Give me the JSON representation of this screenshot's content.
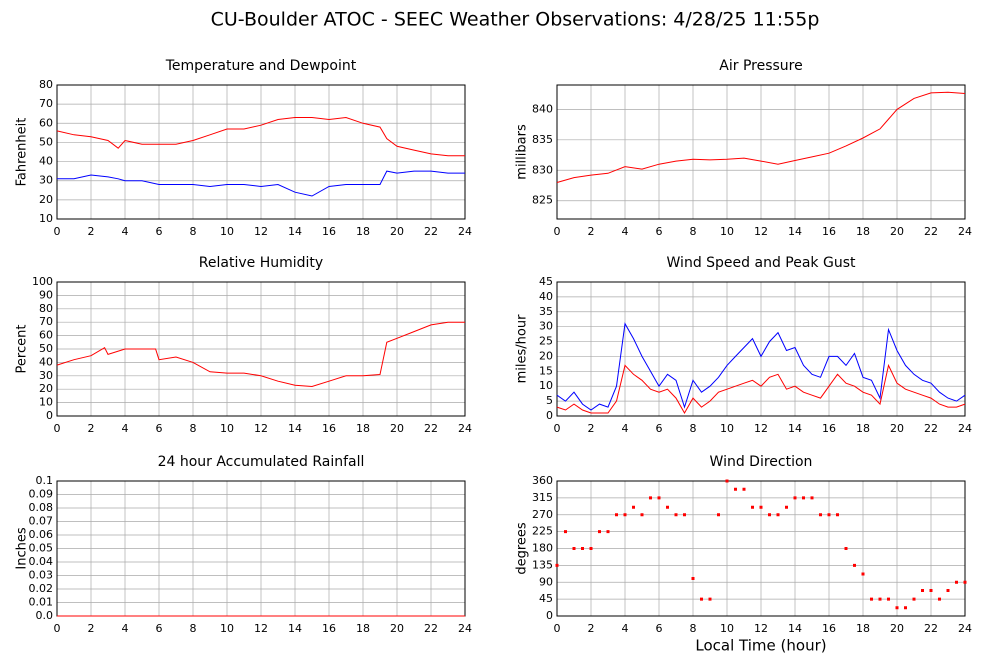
{
  "title": "CU-Boulder ATOC - SEEC Weather Observations: 4/28/25 11:55p",
  "chart_data": [
    {
      "type": "line",
      "title": "Temperature and Dewpoint",
      "ylabel": "Fahrenheit",
      "x": [
        0,
        1,
        2,
        3,
        3.6,
        4,
        5,
        6,
        7,
        8,
        9,
        10,
        11,
        12,
        13,
        14,
        15,
        16,
        17,
        18,
        19,
        19.4,
        20,
        21,
        22,
        23,
        24
      ],
      "series": [
        {
          "color": "#ff0000",
          "values": [
            56,
            54,
            53,
            51,
            47,
            51,
            49,
            49,
            49,
            51,
            54,
            57,
            57,
            59,
            62,
            63,
            63,
            62,
            63,
            60,
            58,
            52,
            48,
            46,
            44,
            43,
            43
          ]
        },
        {
          "color": "#0000ff",
          "values": [
            31,
            31,
            33,
            32,
            31,
            30,
            30,
            28,
            28,
            28,
            27,
            28,
            28,
            27,
            28,
            24,
            22,
            27,
            28,
            28,
            28,
            35,
            34,
            35,
            35,
            34,
            34
          ]
        }
      ],
      "xlim": [
        0,
        24
      ],
      "xticks": [
        0,
        2,
        4,
        6,
        8,
        10,
        12,
        14,
        16,
        18,
        20,
        22,
        24
      ],
      "ylim": [
        10,
        80
      ],
      "yticks": [
        10,
        20,
        30,
        40,
        50,
        60,
        70,
        80
      ],
      "grid": true
    },
    {
      "type": "line",
      "title": "Air Pressure",
      "ylabel": "millibars",
      "x": [
        0,
        1,
        2,
        3,
        4,
        5,
        6,
        7,
        8,
        9,
        10,
        11,
        12,
        13,
        14,
        15,
        16,
        17,
        18,
        19,
        20,
        21,
        22,
        23,
        24
      ],
      "series": [
        {
          "color": "#ff0000",
          "values": [
            828,
            828.8,
            829.2,
            829.5,
            830.6,
            830.2,
            831,
            831.5,
            831.8,
            831.7,
            831.8,
            832,
            831.5,
            831,
            831.6,
            832.2,
            832.8,
            834,
            835.3,
            836.8,
            840,
            841.8,
            842.7,
            842.8,
            842.6
          ]
        }
      ],
      "xlim": [
        0,
        24
      ],
      "xticks": [
        0,
        2,
        4,
        6,
        8,
        10,
        12,
        14,
        16,
        18,
        20,
        22,
        24
      ],
      "ylim": [
        822,
        844
      ],
      "yticks": [
        825,
        830,
        835,
        840
      ],
      "grid": true
    },
    {
      "type": "line",
      "title": "Relative Humidity",
      "ylabel": "Percent",
      "x": [
        0,
        1,
        2,
        2.8,
        3,
        4,
        5,
        5.8,
        6,
        7,
        8,
        9,
        10,
        11,
        12,
        13,
        14,
        15,
        16,
        17,
        18,
        19,
        19.4,
        20,
        21,
        22,
        23,
        24
      ],
      "series": [
        {
          "color": "#ff0000",
          "values": [
            38,
            42,
            45,
            51,
            46,
            50,
            50,
            50,
            42,
            44,
            40,
            33,
            32,
            32,
            30,
            26,
            23,
            22,
            26,
            30,
            30,
            31,
            55,
            58,
            63,
            68,
            70,
            70
          ]
        }
      ],
      "xlim": [
        0,
        24
      ],
      "xticks": [
        0,
        2,
        4,
        6,
        8,
        10,
        12,
        14,
        16,
        18,
        20,
        22,
        24
      ],
      "ylim": [
        0,
        100
      ],
      "yticks": [
        0,
        10,
        20,
        30,
        40,
        50,
        60,
        70,
        80,
        90,
        100
      ],
      "grid": true
    },
    {
      "type": "line",
      "title": "Wind Speed and Peak Gust",
      "ylabel": "miles/hour",
      "x": [
        0,
        0.5,
        1,
        1.5,
        2,
        2.5,
        3,
        3.5,
        4,
        4.5,
        5,
        5.5,
        6,
        6.5,
        7,
        7.5,
        8,
        8.5,
        9,
        9.5,
        10,
        10.5,
        11,
        11.5,
        12,
        12.5,
        13,
        13.5,
        14,
        14.5,
        15,
        15.5,
        16,
        16.5,
        17,
        17.5,
        18,
        18.5,
        19,
        19.5,
        20,
        20.5,
        21,
        21.5,
        22,
        22.5,
        23,
        23.5,
        24
      ],
      "series": [
        {
          "color": "#0000ff",
          "values": [
            7,
            5,
            8,
            4,
            2,
            4,
            3,
            10,
            31,
            26,
            20,
            15,
            10,
            14,
            12,
            3,
            12,
            8,
            10,
            13,
            17,
            20,
            23,
            26,
            20,
            25,
            28,
            22,
            23,
            17,
            14,
            13,
            20,
            20,
            17,
            21,
            13,
            12,
            6,
            29,
            22,
            17,
            14,
            12,
            11,
            8,
            6,
            5,
            7
          ]
        },
        {
          "color": "#ff0000",
          "values": [
            3,
            2,
            4,
            2,
            1,
            1,
            1,
            5,
            17,
            14,
            12,
            9,
            8,
            9,
            6,
            1,
            6,
            3,
            5,
            8,
            9,
            10,
            11,
            12,
            10,
            13,
            14,
            9,
            10,
            8,
            7,
            6,
            10,
            14,
            11,
            10,
            8,
            7,
            4,
            17,
            11,
            9,
            8,
            7,
            6,
            4,
            3,
            3,
            4
          ]
        }
      ],
      "xlim": [
        0,
        24
      ],
      "xticks": [
        0,
        2,
        4,
        6,
        8,
        10,
        12,
        14,
        16,
        18,
        20,
        22,
        24
      ],
      "ylim": [
        0,
        45
      ],
      "yticks": [
        0,
        5,
        10,
        15,
        20,
        25,
        30,
        35,
        40,
        45
      ],
      "grid": true
    },
    {
      "type": "line",
      "title": "24 hour Accumulated Rainfall",
      "ylabel": "Inches",
      "x": [
        0,
        24
      ],
      "series": [
        {
          "color": "#ff0000",
          "values": [
            0,
            0
          ]
        }
      ],
      "xlim": [
        0,
        24
      ],
      "xticks": [
        0,
        2,
        4,
        6,
        8,
        10,
        12,
        14,
        16,
        18,
        20,
        22,
        24
      ],
      "ylim": [
        0,
        0.1
      ],
      "yticks": [
        {
          "value": 0,
          "label": "0.0"
        },
        0.01,
        0.02,
        0.03,
        0.04,
        0.05,
        0.06,
        0.07,
        0.08,
        0.09,
        0.1
      ],
      "grid": true
    },
    {
      "type": "scatter",
      "title": "Wind Direction",
      "ylabel": "degrees",
      "xlabel": "Local Time (hour)",
      "x": [
        0,
        0.5,
        1,
        1.5,
        2,
        2.5,
        3,
        3.5,
        4,
        4.5,
        5,
        5.5,
        6,
        6.5,
        7,
        7.5,
        8,
        8.5,
        9,
        9.5,
        10,
        10.5,
        11,
        11.5,
        12,
        12.5,
        13,
        13.5,
        14,
        14.5,
        15,
        15.5,
        16,
        16.5,
        17,
        17.5,
        18,
        18.5,
        19,
        19.5,
        20,
        20.5,
        21,
        21.5,
        22,
        22.5,
        23,
        23.5,
        24
      ],
      "series": [
        {
          "color": "#ff0000",
          "values": [
            135,
            225,
            180,
            180,
            180,
            225,
            225,
            270,
            270,
            290,
            270,
            315,
            315,
            290,
            270,
            270,
            100,
            45,
            45,
            270,
            360,
            338,
            338,
            290,
            290,
            270,
            270,
            290,
            315,
            315,
            315,
            270,
            270,
            270,
            180,
            135,
            112,
            45,
            45,
            45,
            22,
            22,
            45,
            68,
            68,
            45,
            68,
            90,
            90
          ]
        }
      ],
      "xlim": [
        0,
        24
      ],
      "xticks": [
        0,
        2,
        4,
        6,
        8,
        10,
        12,
        14,
        16,
        18,
        20,
        22,
        24
      ],
      "ylim": [
        0,
        360
      ],
      "yticks": [
        0,
        45,
        90,
        135,
        180,
        225,
        270,
        315,
        360
      ],
      "grid": true
    }
  ]
}
